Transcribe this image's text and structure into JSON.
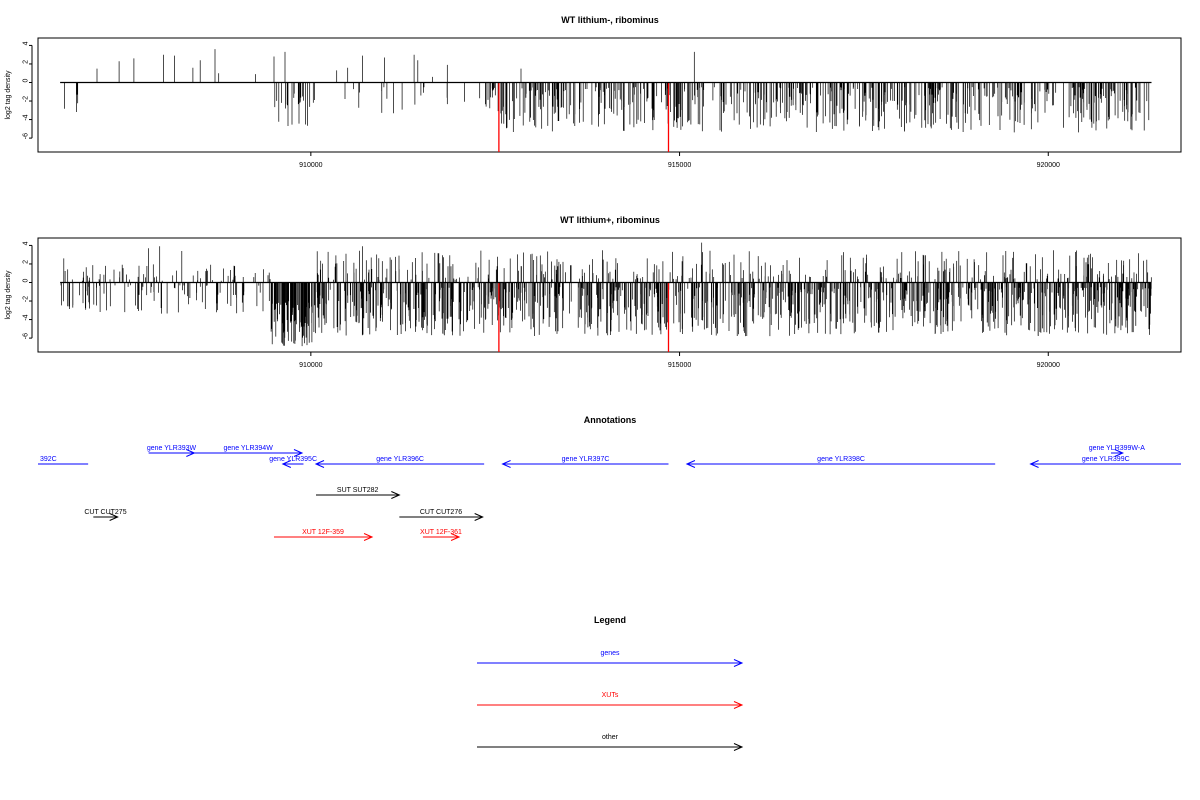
{
  "chart_data": [
    {
      "type": "bar",
      "title": "WT lithium-, ribominus",
      "ylabel": "log2 tag density",
      "xlabel": "",
      "xlim": [
        906300,
        921800
      ],
      "ylim": [
        -7.5,
        4.8
      ],
      "x_ticks": [
        910000,
        915000,
        920000
      ],
      "y_ticks": [
        4,
        2,
        0,
        -2,
        -4,
        -6
      ],
      "data_range": [
        906600,
        921400
      ],
      "bar_color": "#000000",
      "markers": {
        "color": "#ff0000",
        "x": [
          912550,
          914850
        ],
        "values": [
          -7.5,
          -7.5
        ]
      },
      "peaks": [
        {
          "x": 907100,
          "value": 1.5
        },
        {
          "x": 907400,
          "value": 2.3
        },
        {
          "x": 907600,
          "value": 2.6
        },
        {
          "x": 908000,
          "value": 3.0
        },
        {
          "x": 908150,
          "value": 2.9
        },
        {
          "x": 908400,
          "value": 1.6
        },
        {
          "x": 908500,
          "value": 2.4
        },
        {
          "x": 908700,
          "value": 3.6
        },
        {
          "x": 908750,
          "value": 1.0
        },
        {
          "x": 909250,
          "value": 0.9
        },
        {
          "x": 909500,
          "value": 2.8
        },
        {
          "x": 909650,
          "value": 3.3
        },
        {
          "x": 910350,
          "value": 1.3
        },
        {
          "x": 910500,
          "value": 1.6
        },
        {
          "x": 910700,
          "value": 2.9
        },
        {
          "x": 911000,
          "value": 2.7
        },
        {
          "x": 911400,
          "value": 3.0
        },
        {
          "x": 911450,
          "value": 2.4
        },
        {
          "x": 911650,
          "value": 0.6
        },
        {
          "x": 911850,
          "value": 1.9
        },
        {
          "x": 912850,
          "value": 1.5
        },
        {
          "x": 915200,
          "value": 3.3
        }
      ],
      "regions": [
        {
          "start": 906600,
          "end": 906950,
          "min": 0.8,
          "max": 3.2,
          "density": 0.014
        },
        {
          "start": 909450,
          "end": 910000,
          "min": 1.0,
          "max": 5.4,
          "density": 0.06
        },
        {
          "start": 910000,
          "end": 912300,
          "min": 0.5,
          "max": 3.5,
          "density": 0.012
        },
        {
          "start": 912350,
          "end": 921400,
          "min": 0.5,
          "max": 5.4,
          "density": 0.085
        }
      ]
    },
    {
      "type": "bar",
      "title": "WT lithium+, ribominus",
      "ylabel": "log2 tag density",
      "xlabel": "",
      "xlim": [
        906300,
        921800
      ],
      "ylim": [
        -7.5,
        4.8
      ],
      "x_ticks": [
        910000,
        915000,
        920000
      ],
      "y_ticks": [
        4,
        2,
        0,
        -2,
        -4,
        -6
      ],
      "data_range": [
        906600,
        921400
      ],
      "bar_color": "#000000",
      "markers": {
        "color": "#ff0000",
        "x": [
          912550,
          914850
        ],
        "values": [
          -7.5,
          -7.5
        ]
      },
      "peaks": [
        {
          "x": 906650,
          "value": 2.6
        },
        {
          "x": 907800,
          "value": 3.7
        },
        {
          "x": 907950,
          "value": 3.9
        },
        {
          "x": 908250,
          "value": 3.4
        },
        {
          "x": 910700,
          "value": 3.9
        },
        {
          "x": 913000,
          "value": 3.1
        },
        {
          "x": 915300,
          "value": 4.3
        },
        {
          "x": 919000,
          "value": 2.2
        }
      ],
      "regions": [
        {
          "start": 906600,
          "end": 909450,
          "min": 0.3,
          "max": 3.4,
          "density": 0.07,
          "mix": 0.55
        },
        {
          "start": 909450,
          "end": 910050,
          "min": 2.0,
          "max": 7.0,
          "density": 0.22
        },
        {
          "start": 910050,
          "end": 921400,
          "min": 0.5,
          "max": 5.8,
          "density": 0.16,
          "mix": 0.75
        }
      ]
    }
  ],
  "annotations": {
    "title": "Annotations",
    "xlim": [
      906300,
      921800
    ],
    "features": [
      {
        "label": "392C",
        "start": 906300,
        "end": 906980,
        "dir": "none",
        "color": "#0000ff",
        "row": 1
      },
      {
        "label": "gene YLR393W",
        "start": 907800,
        "end": 908420,
        "dir": "right",
        "color": "#0000ff",
        "row": 0
      },
      {
        "label": "gene YLR394W",
        "start": 908420,
        "end": 909880,
        "dir": "right",
        "color": "#0000ff",
        "row": 0
      },
      {
        "label": "gene YLR395C",
        "start": 909620,
        "end": 909900,
        "dir": "left",
        "color": "#0000ff",
        "row": 1
      },
      {
        "label": "gene YLR396C",
        "start": 910070,
        "end": 912350,
        "dir": "left",
        "color": "#0000ff",
        "row": 1
      },
      {
        "label": "gene YLR397C",
        "start": 912600,
        "end": 914850,
        "dir": "left",
        "color": "#0000ff",
        "row": 1
      },
      {
        "label": "gene YLR398C",
        "start": 915100,
        "end": 919280,
        "dir": "left",
        "color": "#0000ff",
        "row": 1
      },
      {
        "label": "gene YLR399C",
        "start": 919760,
        "end": 921800,
        "dir": "left",
        "color": "#0000ff",
        "row": 1
      },
      {
        "label": "gene YLR399W-A",
        "start": 920850,
        "end": 921010,
        "dir": "right",
        "color": "#0000ff",
        "row": 0
      },
      {
        "label": "SUT SUT282",
        "start": 910070,
        "end": 911200,
        "dir": "right",
        "color": "#000000",
        "row": 2
      },
      {
        "label": "CUT CUT275",
        "start": 907050,
        "end": 907380,
        "dir": "right",
        "color": "#000000",
        "row": 3
      },
      {
        "label": "CUT CUT276",
        "start": 911200,
        "end": 912330,
        "dir": "right",
        "color": "#000000",
        "row": 3
      },
      {
        "label": "XUT 12F-359",
        "start": 909500,
        "end": 910830,
        "dir": "right",
        "color": "#ff0000",
        "row": 4
      },
      {
        "label": "XUT 12F-361",
        "start": 911520,
        "end": 912010,
        "dir": "right",
        "color": "#ff0000",
        "row": 4
      }
    ]
  },
  "legend": {
    "title": "Legend",
    "items": [
      {
        "label": "genes",
        "color": "#0000ff"
      },
      {
        "label": "XUTs",
        "color": "#ff0000"
      },
      {
        "label": "other",
        "color": "#000000"
      }
    ]
  }
}
